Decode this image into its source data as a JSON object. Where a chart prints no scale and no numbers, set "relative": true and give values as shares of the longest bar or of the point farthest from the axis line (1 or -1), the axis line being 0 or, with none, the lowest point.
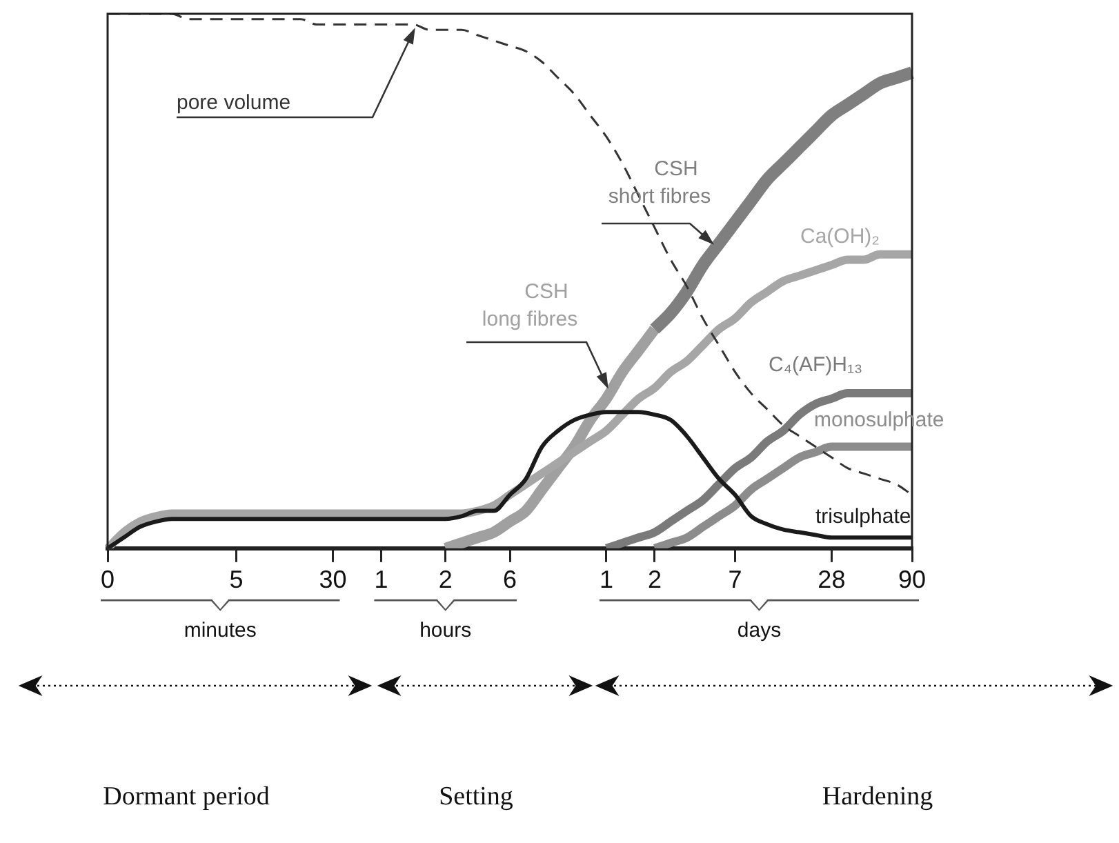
{
  "chart_data": {
    "type": "line",
    "relative": true,
    "categories": [
      "0",
      null,
      null,
      null,
      null,
      null,
      null,
      null,
      "5",
      null,
      null,
      null,
      null,
      null,
      "30",
      null,
      null,
      "1",
      null,
      null,
      null,
      "2",
      null,
      null,
      null,
      "6",
      null,
      null,
      null,
      null,
      null,
      "1",
      null,
      null,
      "2",
      null,
      null,
      null,
      null,
      "7",
      null,
      null,
      null,
      null,
      null,
      "28",
      null,
      null,
      null,
      null,
      "90"
    ],
    "series": [
      {
        "name": "pore volume",
        "color": "#333333",
        "line_style": "dashed",
        "values": [
          1,
          1,
          1,
          1,
          1,
          0.99,
          0.99,
          0.99,
          0.99,
          0.99,
          0.99,
          0.99,
          0.99,
          0.98,
          0.98,
          0.98,
          0.98,
          0.98,
          0.98,
          0.98,
          0.97,
          0.97,
          0.97,
          0.96,
          0.95,
          0.94,
          0.93,
          0.91,
          0.88,
          0.85,
          0.81,
          0.77,
          0.72,
          0.66,
          0.6,
          0.54,
          0.49,
          0.43,
          0.38,
          0.33,
          0.29,
          0.26,
          0.23,
          0.21,
          0.19,
          0.17,
          0.15,
          0.14,
          0.13,
          0.12,
          0.1
        ]
      },
      {
        "name": "CSH short fibres",
        "color": "#7f7f7f",
        "values": [
          null,
          null,
          null,
          null,
          null,
          null,
          null,
          null,
          null,
          null,
          null,
          null,
          null,
          null,
          null,
          null,
          null,
          null,
          null,
          null,
          null,
          null,
          null,
          null,
          null,
          null,
          null,
          null,
          null,
          null,
          null,
          null,
          null,
          null,
          0.41,
          0.44,
          0.48,
          0.53,
          0.57,
          0.61,
          0.65,
          0.69,
          0.72,
          0.75,
          0.78,
          0.81,
          0.83,
          0.85,
          0.87,
          0.88,
          0.89
        ]
      },
      {
        "name": "Ca(OH)₂",
        "color": "#a6a6a6",
        "values": [
          0,
          0.03,
          0.05,
          0.06,
          0.065,
          0.065,
          0.065,
          0.065,
          0.065,
          0.065,
          0.065,
          0.065,
          0.065,
          0.065,
          0.065,
          0.065,
          0.065,
          0.065,
          0.065,
          0.065,
          0.065,
          0.065,
          0.065,
          0.07,
          0.08,
          0.1,
          0.12,
          0.14,
          0.16,
          0.18,
          0.2,
          0.22,
          0.25,
          0.28,
          0.3,
          0.33,
          0.35,
          0.38,
          0.41,
          0.43,
          0.46,
          0.48,
          0.5,
          0.51,
          0.52,
          0.53,
          0.54,
          0.54,
          0.55,
          0.55,
          0.55
        ]
      },
      {
        "name": "C₄(AF)H₁₃",
        "color": "#7a7a7a",
        "values": [
          null,
          null,
          null,
          null,
          null,
          null,
          null,
          null,
          null,
          null,
          null,
          null,
          null,
          null,
          null,
          null,
          null,
          null,
          null,
          null,
          null,
          null,
          null,
          null,
          null,
          null,
          null,
          null,
          null,
          null,
          null,
          0,
          0.01,
          0.02,
          0.03,
          0.05,
          0.07,
          0.09,
          0.12,
          0.15,
          0.17,
          0.2,
          0.22,
          0.25,
          0.27,
          0.28,
          0.29,
          0.29,
          0.29,
          0.29,
          0.29
        ]
      },
      {
        "name": "monosulphate",
        "color": "#8c8c8c",
        "values": [
          null,
          null,
          null,
          null,
          null,
          null,
          null,
          null,
          null,
          null,
          null,
          null,
          null,
          null,
          null,
          null,
          null,
          null,
          null,
          null,
          null,
          null,
          null,
          null,
          null,
          null,
          null,
          null,
          null,
          null,
          null,
          null,
          null,
          null,
          0,
          0.01,
          0.02,
          0.04,
          0.06,
          0.08,
          0.11,
          0.13,
          0.15,
          0.17,
          0.18,
          0.19,
          0.19,
          0.19,
          0.19,
          0.19,
          0.19
        ]
      },
      {
        "name": "trisulphate",
        "color": "#1a1a1a",
        "values": [
          0,
          0.02,
          0.04,
          0.05,
          0.055,
          0.055,
          0.055,
          0.055,
          0.055,
          0.055,
          0.055,
          0.055,
          0.055,
          0.055,
          0.055,
          0.055,
          0.055,
          0.055,
          0.055,
          0.055,
          0.055,
          0.055,
          0.06,
          0.07,
          0.07,
          0.1,
          0.13,
          0.19,
          0.22,
          0.24,
          0.25,
          0.255,
          0.255,
          0.255,
          0.25,
          0.24,
          0.21,
          0.17,
          0.13,
          0.1,
          0.06,
          0.045,
          0.035,
          0.03,
          0.025,
          0.02,
          0.02,
          0.02,
          0.02,
          0.02,
          0.02
        ]
      },
      {
        "name": "CSH long fibres",
        "color": "#a0a0a0",
        "values": [
          null,
          null,
          null,
          null,
          null,
          null,
          null,
          null,
          null,
          null,
          null,
          null,
          null,
          null,
          null,
          null,
          null,
          null,
          null,
          null,
          null,
          0,
          0.01,
          0.02,
          0.03,
          0.05,
          0.07,
          0.11,
          0.15,
          0.19,
          0.24,
          0.28,
          0.33,
          0.37,
          0.41,
          null,
          null,
          null,
          null,
          null,
          null,
          null,
          null,
          null,
          null,
          null,
          null,
          null,
          null,
          null,
          null
        ]
      }
    ],
    "annotations": [
      "minutes",
      "hours",
      "days",
      "Dormant period",
      "Setting",
      "Hardening"
    ]
  }
}
